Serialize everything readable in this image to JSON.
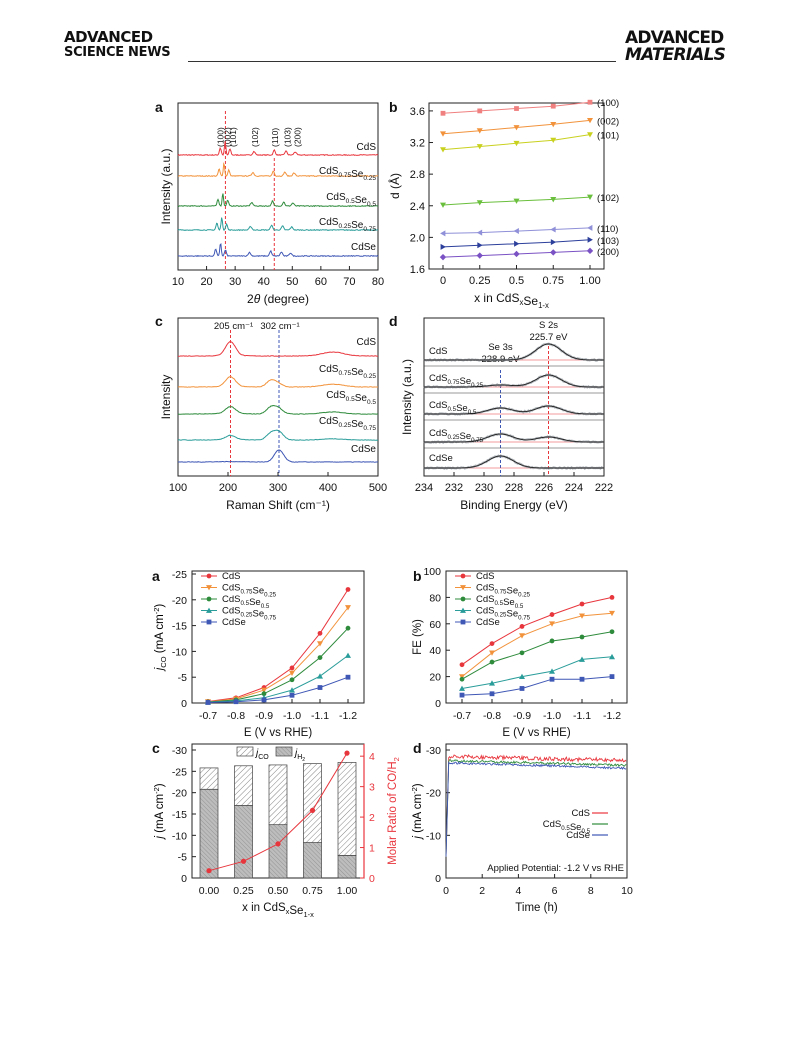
{
  "header": {
    "left_line1": "ADVANCED",
    "left_line2": "SCIENCE NEWS",
    "right_line1": "ADVANCED",
    "right_line2": "MATERIALS"
  },
  "chart_data": [
    {
      "panel": "a",
      "type": "line",
      "xlabel": "2θ (degree)",
      "ylabel": "Intensity (a.u.)",
      "xlim": [
        10,
        80
      ],
      "xticks": [
        10,
        20,
        30,
        40,
        50,
        60,
        70,
        80
      ],
      "series": [
        {
          "name": "CdS",
          "color": "#e8363d"
        },
        {
          "name": "CdS0.75Se0.25",
          "color": "#f2933c"
        },
        {
          "name": "CdS0.5Se0.5",
          "color": "#2e8b3c"
        },
        {
          "name": "CdS0.25Se0.75",
          "color": "#2a9d9a"
        },
        {
          "name": "CdSe",
          "color": "#3f57b5"
        }
      ],
      "peak_labels": [
        "(100)",
        "(002)",
        "(101)",
        "(102)",
        "(110)",
        "(103)",
        "(200)"
      ],
      "peak_positions": [
        24.8,
        26.5,
        28.2,
        36.6,
        43.7,
        47.8,
        51.0
      ]
    },
    {
      "panel": "b",
      "type": "line",
      "xlabel": "x in CdSxSe1-x",
      "ylabel": "d (Å)",
      "x": [
        0,
        0.25,
        0.5,
        0.75,
        1.0
      ],
      "xticks": [
        "0",
        "0.25",
        "0.5",
        "0.75",
        "1.00"
      ],
      "ylim": [
        1.6,
        3.7
      ],
      "yticks": [
        "1.6",
        "2.0",
        "2.4",
        "2.8",
        "3.2",
        "3.6"
      ],
      "series": [
        {
          "name": "(100)",
          "color": "#f08080",
          "values": [
            3.57,
            3.6,
            3.63,
            3.66,
            3.71
          ]
        },
        {
          "name": "(002)",
          "color": "#f2933c",
          "values": [
            3.31,
            3.35,
            3.39,
            3.43,
            3.48
          ]
        },
        {
          "name": "(101)",
          "color": "#c9d11f",
          "values": [
            3.11,
            3.15,
            3.19,
            3.23,
            3.3
          ]
        },
        {
          "name": "(102)",
          "color": "#6abf3d",
          "values": [
            2.41,
            2.44,
            2.46,
            2.48,
            2.51
          ]
        },
        {
          "name": "(110)",
          "color": "#8f90d8",
          "values": [
            2.05,
            2.06,
            2.08,
            2.1,
            2.12
          ]
        },
        {
          "name": "(103)",
          "color": "#2c3f9b",
          "values": [
            1.88,
            1.9,
            1.92,
            1.94,
            1.97
          ]
        },
        {
          "name": "(200)",
          "color": "#7b52c4",
          "values": [
            1.75,
            1.77,
            1.79,
            1.81,
            1.83
          ]
        }
      ]
    },
    {
      "panel": "c",
      "type": "line",
      "xlabel": "Raman Shift (cm⁻¹)",
      "ylabel": "Intensity",
      "xlim": [
        100,
        500
      ],
      "xticks": [
        100,
        200,
        300,
        400,
        500
      ],
      "annotations": [
        "205 cm⁻¹",
        "302 cm⁻¹"
      ],
      "series": [
        {
          "name": "CdS",
          "color": "#e8363d"
        },
        {
          "name": "CdS0.75Se0.25",
          "color": "#f2933c"
        },
        {
          "name": "CdS0.5Se0.5",
          "color": "#2e8b3c"
        },
        {
          "name": "CdS0.25Se0.75",
          "color": "#2a9d9a"
        },
        {
          "name": "CdSe",
          "color": "#3f57b5"
        }
      ]
    },
    {
      "panel": "d",
      "type": "line",
      "xlabel": "Binding Energy (eV)",
      "ylabel": "Intensity (a.u.)",
      "xlim": [
        234,
        222
      ],
      "xticks": [
        234,
        232,
        230,
        228,
        226,
        224,
        222
      ],
      "annotations": [
        "Se 3s",
        "228.9 eV",
        "S 2s",
        "225.7 eV"
      ],
      "series": [
        {
          "name": "CdS"
        },
        {
          "name": "CdS0.75Se0.25"
        },
        {
          "name": "CdS0.5Se0.5"
        },
        {
          "name": "CdS0.25Se0.75"
        },
        {
          "name": "CdSe"
        }
      ]
    },
    {
      "panel": "a",
      "type": "line",
      "xlabel": "E (V vs RHE)",
      "ylabel": "jCO (mA cm⁻²)",
      "categories": [
        "-0.7",
        "-0.8",
        "-0.9",
        "-1.0",
        "-1.1",
        "-1.2"
      ],
      "ylim": [
        0,
        -25
      ],
      "yticks": [
        "0",
        "-5",
        "-10",
        "-15",
        "-20",
        "-25"
      ],
      "series": [
        {
          "name": "CdS",
          "color": "#e8363d",
          "values": [
            -0.3,
            -1.0,
            -3.0,
            -6.8,
            -13.5,
            -22.0
          ]
        },
        {
          "name": "CdS0.75Se0.25",
          "color": "#f2933c",
          "values": [
            -0.25,
            -0.8,
            -2.5,
            -5.8,
            -11.5,
            -18.5
          ]
        },
        {
          "name": "CdS0.5Se0.5",
          "color": "#2e8b3c",
          "values": [
            -0.2,
            -0.6,
            -1.8,
            -4.5,
            -8.8,
            -14.5
          ]
        },
        {
          "name": "CdS0.25Se0.75",
          "color": "#2a9d9a",
          "values": [
            -0.15,
            -0.4,
            -1.0,
            -2.5,
            -5.2,
            -9.2
          ]
        },
        {
          "name": "CdSe",
          "color": "#3f57b5",
          "values": [
            -0.1,
            -0.25,
            -0.6,
            -1.5,
            -3.0,
            -5.0
          ]
        }
      ]
    },
    {
      "panel": "b",
      "type": "line",
      "xlabel": "E (V vs RHE)",
      "ylabel": "FE (%)",
      "categories": [
        "-0.7",
        "-0.8",
        "-0.9",
        "-1.0",
        "-1.1",
        "-1.2"
      ],
      "ylim": [
        0,
        100
      ],
      "yticks": [
        "0",
        "20",
        "40",
        "60",
        "80",
        "100"
      ],
      "series": [
        {
          "name": "CdS",
          "color": "#e8363d",
          "values": [
            29,
            45,
            58,
            67,
            75,
            80
          ]
        },
        {
          "name": "CdS0.75Se0.25",
          "color": "#f2933c",
          "values": [
            20,
            38,
            51,
            60,
            66,
            68
          ]
        },
        {
          "name": "CdS0.5Se0.5",
          "color": "#2e8b3c",
          "values": [
            18,
            31,
            38,
            47,
            50,
            54
          ]
        },
        {
          "name": "CdS0.25Se0.75",
          "color": "#2a9d9a",
          "values": [
            11,
            15,
            20,
            24,
            33,
            35
          ]
        },
        {
          "name": "CdSe",
          "color": "#3f57b5",
          "values": [
            6,
            7,
            11,
            18,
            18,
            20
          ]
        }
      ]
    },
    {
      "panel": "c",
      "type": "bar",
      "xlabel": "x in CdSxSe1-x",
      "ylabel": "j (mA cm⁻²)",
      "y2label": "Molar Ratio of CO/H2",
      "categories": [
        "0.00",
        "0.25",
        "0.50",
        "0.75",
        "1.00"
      ],
      "ylim": [
        0,
        -30
      ],
      "yticks": [
        "0",
        "-5",
        "-10",
        "-15",
        "-20",
        "-25",
        "-30"
      ],
      "y2lim": [
        0,
        4.4
      ],
      "y2ticks": [
        "0",
        "1",
        "2",
        "3",
        "4"
      ],
      "legend": [
        "jCO",
        "jH2"
      ],
      "series": [
        {
          "name": "jCO",
          "values": [
            5.0,
            9.3,
            14.0,
            18.5,
            21.8
          ]
        },
        {
          "name": "jH2",
          "values": [
            20.8,
            17.0,
            12.5,
            8.3,
            5.3
          ]
        },
        {
          "name": "Molar Ratio of CO/H2",
          "color": "#e8363d",
          "values": [
            0.24,
            0.55,
            1.12,
            2.22,
            4.1
          ]
        }
      ]
    },
    {
      "panel": "d",
      "type": "line",
      "xlabel": "Time (h)",
      "ylabel": "j (mA cm⁻²)",
      "xlim": [
        0,
        10
      ],
      "xticks": [
        "0",
        "2",
        "4",
        "6",
        "8",
        "10"
      ],
      "ylim": [
        0,
        -30
      ],
      "yticks": [
        "0",
        "-10",
        "-20",
        "-30"
      ],
      "annotation": "Applied Potential: -1.2 V vs RHE",
      "series": [
        {
          "name": "CdS",
          "color": "#e8363d",
          "values": [
            -28.5,
            -28.0,
            -27.6
          ]
        },
        {
          "name": "CdS0.5Se0.5",
          "color": "#2e8b3c",
          "values": [
            -27.5,
            -27.0,
            -26.4
          ]
        },
        {
          "name": "CdSe",
          "color": "#3f57b5",
          "values": [
            -27.0,
            -26.4,
            -25.7
          ]
        }
      ]
    }
  ]
}
